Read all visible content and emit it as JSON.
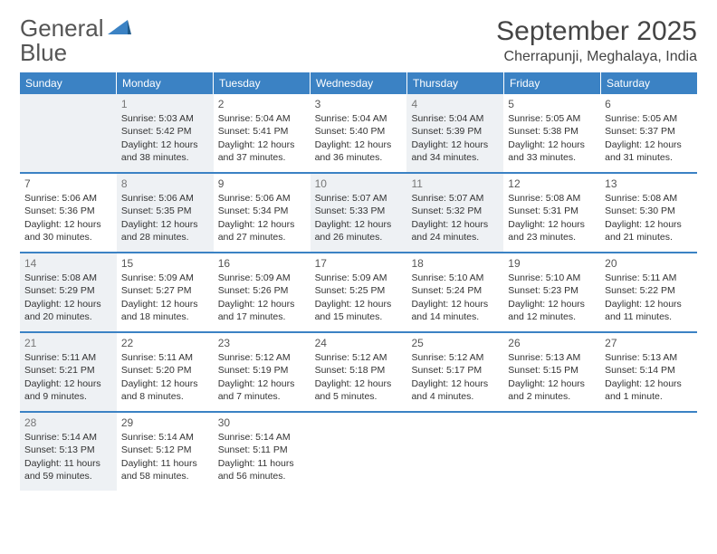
{
  "brand": {
    "name_part1": "General",
    "name_part2": "Blue"
  },
  "title": "September 2025",
  "location": "Cherrapunji, Meghalaya, India",
  "header_bg": "#3b82c4",
  "rule_color": "#3b82c4",
  "shaded_bg": "#eef1f4",
  "day_headers": [
    "Sunday",
    "Monday",
    "Tuesday",
    "Wednesday",
    "Thursday",
    "Friday",
    "Saturday"
  ],
  "weeks": [
    [
      {
        "day": "",
        "shaded": true,
        "lines": []
      },
      {
        "day": "1",
        "shaded": true,
        "lines": [
          "Sunrise: 5:03 AM",
          "Sunset: 5:42 PM",
          "Daylight: 12 hours",
          "and 38 minutes."
        ]
      },
      {
        "day": "2",
        "shaded": false,
        "lines": [
          "Sunrise: 5:04 AM",
          "Sunset: 5:41 PM",
          "Daylight: 12 hours",
          "and 37 minutes."
        ]
      },
      {
        "day": "3",
        "shaded": false,
        "lines": [
          "Sunrise: 5:04 AM",
          "Sunset: 5:40 PM",
          "Daylight: 12 hours",
          "and 36 minutes."
        ]
      },
      {
        "day": "4",
        "shaded": true,
        "lines": [
          "Sunrise: 5:04 AM",
          "Sunset: 5:39 PM",
          "Daylight: 12 hours",
          "and 34 minutes."
        ]
      },
      {
        "day": "5",
        "shaded": false,
        "lines": [
          "Sunrise: 5:05 AM",
          "Sunset: 5:38 PM",
          "Daylight: 12 hours",
          "and 33 minutes."
        ]
      },
      {
        "day": "6",
        "shaded": false,
        "lines": [
          "Sunrise: 5:05 AM",
          "Sunset: 5:37 PM",
          "Daylight: 12 hours",
          "and 31 minutes."
        ]
      }
    ],
    [
      {
        "day": "7",
        "shaded": false,
        "lines": [
          "Sunrise: 5:06 AM",
          "Sunset: 5:36 PM",
          "Daylight: 12 hours",
          "and 30 minutes."
        ]
      },
      {
        "day": "8",
        "shaded": true,
        "lines": [
          "Sunrise: 5:06 AM",
          "Sunset: 5:35 PM",
          "Daylight: 12 hours",
          "and 28 minutes."
        ]
      },
      {
        "day": "9",
        "shaded": false,
        "lines": [
          "Sunrise: 5:06 AM",
          "Sunset: 5:34 PM",
          "Daylight: 12 hours",
          "and 27 minutes."
        ]
      },
      {
        "day": "10",
        "shaded": true,
        "lines": [
          "Sunrise: 5:07 AM",
          "Sunset: 5:33 PM",
          "Daylight: 12 hours",
          "and 26 minutes."
        ]
      },
      {
        "day": "11",
        "shaded": true,
        "lines": [
          "Sunrise: 5:07 AM",
          "Sunset: 5:32 PM",
          "Daylight: 12 hours",
          "and 24 minutes."
        ]
      },
      {
        "day": "12",
        "shaded": false,
        "lines": [
          "Sunrise: 5:08 AM",
          "Sunset: 5:31 PM",
          "Daylight: 12 hours",
          "and 23 minutes."
        ]
      },
      {
        "day": "13",
        "shaded": false,
        "lines": [
          "Sunrise: 5:08 AM",
          "Sunset: 5:30 PM",
          "Daylight: 12 hours",
          "and 21 minutes."
        ]
      }
    ],
    [
      {
        "day": "14",
        "shaded": true,
        "lines": [
          "Sunrise: 5:08 AM",
          "Sunset: 5:29 PM",
          "Daylight: 12 hours",
          "and 20 minutes."
        ]
      },
      {
        "day": "15",
        "shaded": false,
        "lines": [
          "Sunrise: 5:09 AM",
          "Sunset: 5:27 PM",
          "Daylight: 12 hours",
          "and 18 minutes."
        ]
      },
      {
        "day": "16",
        "shaded": false,
        "lines": [
          "Sunrise: 5:09 AM",
          "Sunset: 5:26 PM",
          "Daylight: 12 hours",
          "and 17 minutes."
        ]
      },
      {
        "day": "17",
        "shaded": false,
        "lines": [
          "Sunrise: 5:09 AM",
          "Sunset: 5:25 PM",
          "Daylight: 12 hours",
          "and 15 minutes."
        ]
      },
      {
        "day": "18",
        "shaded": false,
        "lines": [
          "Sunrise: 5:10 AM",
          "Sunset: 5:24 PM",
          "Daylight: 12 hours",
          "and 14 minutes."
        ]
      },
      {
        "day": "19",
        "shaded": false,
        "lines": [
          "Sunrise: 5:10 AM",
          "Sunset: 5:23 PM",
          "Daylight: 12 hours",
          "and 12 minutes."
        ]
      },
      {
        "day": "20",
        "shaded": false,
        "lines": [
          "Sunrise: 5:11 AM",
          "Sunset: 5:22 PM",
          "Daylight: 12 hours",
          "and 11 minutes."
        ]
      }
    ],
    [
      {
        "day": "21",
        "shaded": true,
        "lines": [
          "Sunrise: 5:11 AM",
          "Sunset: 5:21 PM",
          "Daylight: 12 hours",
          "and 9 minutes."
        ]
      },
      {
        "day": "22",
        "shaded": false,
        "lines": [
          "Sunrise: 5:11 AM",
          "Sunset: 5:20 PM",
          "Daylight: 12 hours",
          "and 8 minutes."
        ]
      },
      {
        "day": "23",
        "shaded": false,
        "lines": [
          "Sunrise: 5:12 AM",
          "Sunset: 5:19 PM",
          "Daylight: 12 hours",
          "and 7 minutes."
        ]
      },
      {
        "day": "24",
        "shaded": false,
        "lines": [
          "Sunrise: 5:12 AM",
          "Sunset: 5:18 PM",
          "Daylight: 12 hours",
          "and 5 minutes."
        ]
      },
      {
        "day": "25",
        "shaded": false,
        "lines": [
          "Sunrise: 5:12 AM",
          "Sunset: 5:17 PM",
          "Daylight: 12 hours",
          "and 4 minutes."
        ]
      },
      {
        "day": "26",
        "shaded": false,
        "lines": [
          "Sunrise: 5:13 AM",
          "Sunset: 5:15 PM",
          "Daylight: 12 hours",
          "and 2 minutes."
        ]
      },
      {
        "day": "27",
        "shaded": false,
        "lines": [
          "Sunrise: 5:13 AM",
          "Sunset: 5:14 PM",
          "Daylight: 12 hours",
          "and 1 minute."
        ]
      }
    ],
    [
      {
        "day": "28",
        "shaded": true,
        "lines": [
          "Sunrise: 5:14 AM",
          "Sunset: 5:13 PM",
          "Daylight: 11 hours",
          "and 59 minutes."
        ]
      },
      {
        "day": "29",
        "shaded": false,
        "lines": [
          "Sunrise: 5:14 AM",
          "Sunset: 5:12 PM",
          "Daylight: 11 hours",
          "and 58 minutes."
        ]
      },
      {
        "day": "30",
        "shaded": false,
        "lines": [
          "Sunrise: 5:14 AM",
          "Sunset: 5:11 PM",
          "Daylight: 11 hours",
          "and 56 minutes."
        ]
      },
      {
        "day": "",
        "shaded": false,
        "lines": []
      },
      {
        "day": "",
        "shaded": false,
        "lines": []
      },
      {
        "day": "",
        "shaded": false,
        "lines": []
      },
      {
        "day": "",
        "shaded": false,
        "lines": []
      }
    ]
  ]
}
